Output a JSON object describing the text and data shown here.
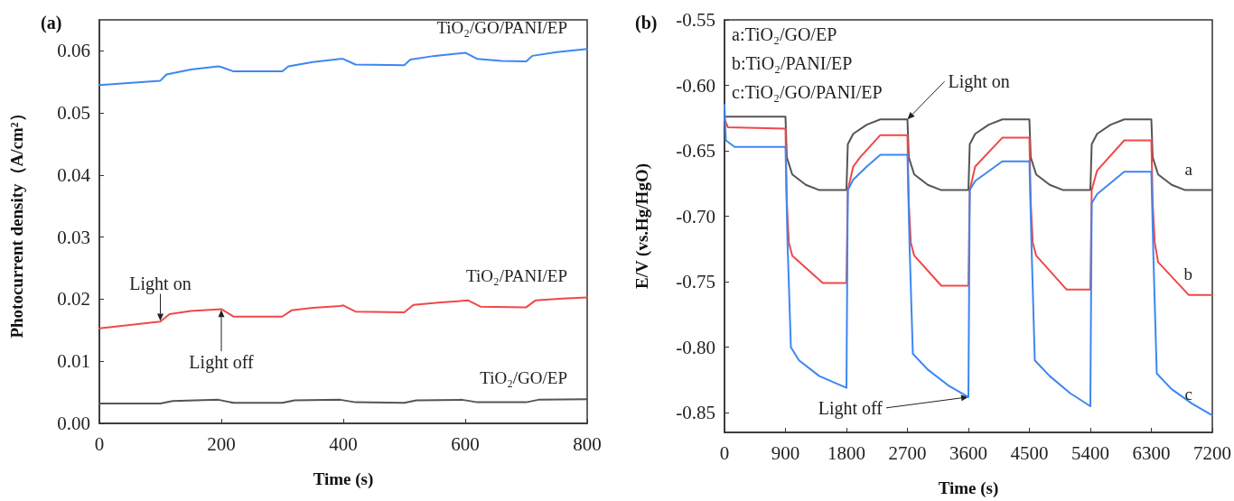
{
  "chart_data": [
    {
      "type": "line",
      "title": "(a)",
      "xlabel": "Time (s)",
      "ylabel": "Photocurrent density（A/cm²）",
      "xlim": [
        0,
        800
      ],
      "xticks": [
        0,
        200,
        400,
        600,
        800
      ],
      "ylim": [
        0,
        0.065
      ],
      "yticks": [
        {
          "value": 0,
          "label": "0.00"
        },
        0.01,
        0.02,
        0.03,
        0.04,
        0.05,
        0.06
      ],
      "grid": false,
      "legend": false,
      "marker": "none",
      "line_style": "solid",
      "annotations": [
        {
          "text": "Light on",
          "x": 100,
          "y": 0.0165
        },
        {
          "text": "Light off",
          "x": 200,
          "y": 0.0183
        }
      ],
      "series": [
        {
          "name": "TiO₂/GO/PANI/EP",
          "color": "#3d87f0",
          "x": [
            0,
            100,
            110,
            150,
            195,
            200,
            220,
            300,
            310,
            350,
            395,
            400,
            420,
            500,
            510,
            550,
            600,
            620,
            660,
            700,
            710,
            750,
            800
          ],
          "values": [
            0.0545,
            0.0552,
            0.0562,
            0.057,
            0.0575,
            0.0574,
            0.0567,
            0.0567,
            0.0575,
            0.0582,
            0.0587,
            0.0587,
            0.0578,
            0.0577,
            0.0586,
            0.0592,
            0.0597,
            0.0587,
            0.0584,
            0.0583,
            0.0592,
            0.0598,
            0.0603
          ]
        },
        {
          "name": "TiO₂/PANI/EP",
          "color": "#f04848",
          "x": [
            0,
            100,
            115,
            150,
            200,
            220,
            300,
            315,
            350,
            395,
            400,
            420,
            500,
            515,
            560,
            605,
            625,
            700,
            715,
            760,
            800
          ],
          "values": [
            0.0153,
            0.0164,
            0.0176,
            0.0181,
            0.0184,
            0.0172,
            0.0172,
            0.0182,
            0.0186,
            0.0189,
            0.019,
            0.018,
            0.0179,
            0.0191,
            0.0195,
            0.0198,
            0.0188,
            0.0187,
            0.0198,
            0.0201,
            0.0203
          ]
        },
        {
          "name": "TiO₂/GO/EP",
          "color": "#555555",
          "x": [
            0,
            100,
            120,
            195,
            220,
            300,
            320,
            395,
            420,
            500,
            520,
            595,
            620,
            700,
            720,
            800
          ],
          "values": [
            0.0032,
            0.0032,
            0.0036,
            0.0038,
            0.0033,
            0.0033,
            0.0037,
            0.0038,
            0.0034,
            0.0033,
            0.0037,
            0.0038,
            0.0034,
            0.0034,
            0.0038,
            0.0039
          ]
        }
      ]
    },
    {
      "type": "line",
      "title": "(b)",
      "xlabel": "Time (s)",
      "ylabel": "E/V (vs.Hg/HgO)",
      "xlim": [
        0,
        7200
      ],
      "xticks": [
        0,
        900,
        1800,
        2700,
        3600,
        4500,
        5400,
        6300,
        7200
      ],
      "ylim": [
        -0.865,
        -0.55
      ],
      "yticks": [
        -0.85,
        {
          "value": -0.8,
          "label": "-0.80"
        },
        -0.75,
        {
          "value": -0.7,
          "label": "-0.70"
        },
        -0.65,
        {
          "value": -0.6,
          "label": "-0.60"
        },
        -0.55
      ],
      "grid": false,
      "legend": false,
      "marker": "none",
      "line_style": "solid",
      "annotations": [
        "a:TiO₂/GO/EP",
        "b:TiO₂/PANI/EP",
        "c:TiO₂/GO/PANI/EP",
        {
          "text": "Light on",
          "x": 2700,
          "y": -0.626
        },
        {
          "text": "Light off",
          "x": 3600,
          "y": -0.838
        }
      ],
      "series": [
        {
          "name": "a",
          "color": "#555555",
          "x": [
            0,
            900,
            920,
            1000,
            1200,
            1400,
            1800,
            1820,
            1900,
            2100,
            2300,
            2700,
            2720,
            2800,
            3000,
            3200,
            3600,
            3620,
            3700,
            3900,
            4100,
            4500,
            4520,
            4600,
            4800,
            5000,
            5400,
            5420,
            5500,
            5700,
            5900,
            6300,
            6320,
            6400,
            6600,
            6800,
            7200
          ],
          "values": [
            -0.624,
            -0.624,
            -0.655,
            -0.668,
            -0.676,
            -0.68,
            -0.68,
            -0.645,
            -0.637,
            -0.63,
            -0.626,
            -0.626,
            -0.655,
            -0.668,
            -0.676,
            -0.68,
            -0.68,
            -0.645,
            -0.637,
            -0.63,
            -0.626,
            -0.626,
            -0.655,
            -0.668,
            -0.676,
            -0.68,
            -0.68,
            -0.645,
            -0.637,
            -0.63,
            -0.626,
            -0.626,
            -0.655,
            -0.668,
            -0.676,
            -0.68,
            -0.68
          ]
        },
        {
          "name": "b",
          "color": "#f04848",
          "x": [
            0,
            50,
            900,
            920,
            950,
            1000,
            1450,
            1800,
            1820,
            1900,
            2000,
            2300,
            2700,
            2720,
            2750,
            2800,
            3200,
            3600,
            3620,
            3700,
            4100,
            4500,
            4520,
            4550,
            4600,
            5050,
            5400,
            5420,
            5500,
            5900,
            6300,
            6320,
            6350,
            6400,
            6850,
            7200
          ],
          "values": [
            -0.626,
            -0.632,
            -0.633,
            -0.69,
            -0.72,
            -0.73,
            -0.751,
            -0.751,
            -0.68,
            -0.662,
            -0.655,
            -0.638,
            -0.638,
            -0.69,
            -0.72,
            -0.73,
            -0.753,
            -0.753,
            -0.68,
            -0.662,
            -0.64,
            -0.64,
            -0.69,
            -0.72,
            -0.73,
            -0.756,
            -0.756,
            -0.68,
            -0.665,
            -0.642,
            -0.642,
            -0.69,
            -0.72,
            -0.735,
            -0.76,
            -0.76
          ]
        },
        {
          "name": "c",
          "color": "#3d87f0",
          "x": [
            0,
            20,
            150,
            900,
            930,
            980,
            1100,
            1400,
            1800,
            1820,
            1900,
            2100,
            2300,
            2700,
            2730,
            2780,
            3000,
            3300,
            3600,
            3620,
            3700,
            4100,
            4500,
            4530,
            4580,
            4800,
            5100,
            5400,
            5420,
            5500,
            5900,
            6300,
            6330,
            6380,
            6600,
            6900,
            7200
          ],
          "values": [
            -0.615,
            -0.642,
            -0.647,
            -0.647,
            -0.72,
            -0.8,
            -0.81,
            -0.822,
            -0.831,
            -0.68,
            -0.672,
            -0.662,
            -0.653,
            -0.653,
            -0.72,
            -0.805,
            -0.817,
            -0.829,
            -0.838,
            -0.68,
            -0.673,
            -0.658,
            -0.658,
            -0.72,
            -0.81,
            -0.822,
            -0.835,
            -0.845,
            -0.69,
            -0.683,
            -0.666,
            -0.666,
            -0.73,
            -0.82,
            -0.832,
            -0.843,
            -0.852
          ]
        }
      ]
    }
  ]
}
